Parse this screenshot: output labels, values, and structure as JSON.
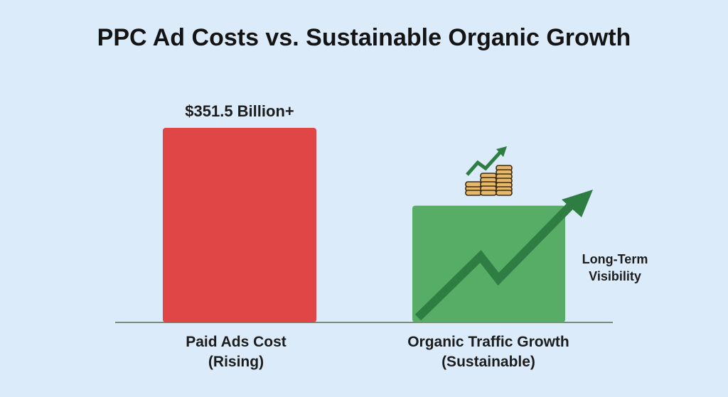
{
  "chart_data": {
    "type": "bar",
    "title": "PPC Ad Costs vs. Sustainable Organic Growth",
    "categories": [
      {
        "line1": "Paid Ads Cost",
        "line2": "(Rising)"
      },
      {
        "line1": "Organic Traffic Growth",
        "line2": "(Sustainable)"
      }
    ],
    "values": [
      100,
      60
    ],
    "value_labels": [
      "$351.5 Billion+",
      ""
    ],
    "annotation": {
      "line1": "Long-Term",
      "line2": "Visibility"
    },
    "ylim": [
      0,
      100
    ],
    "grid": false,
    "colors": {
      "paid": "#e04646",
      "organic": "#58ad66",
      "arrow": "#2e7d43",
      "baseline": "#7a8a7c"
    },
    "icons": [
      "coin-stack-growth-icon",
      "trend-arrow-icon"
    ]
  }
}
